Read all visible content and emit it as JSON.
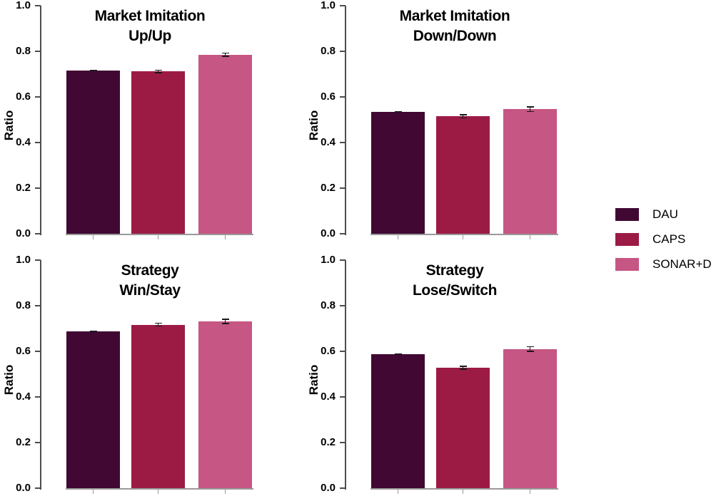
{
  "figure_title": "",
  "ylabel": "Ratio",
  "chart_data": {
    "type": "bar",
    "layout": "2x2 grid of subplots with shared legend at right",
    "ylabel": "Ratio",
    "ylim": [
      0,
      1
    ],
    "yticks": [
      0.0,
      0.2,
      0.4,
      0.6,
      0.8,
      1.0
    ],
    "ytick_labels": [
      "0.0",
      "0.2",
      "0.4",
      "0.6",
      "0.8",
      "1.0"
    ],
    "grid": false,
    "categories": [
      "DAU",
      "CAPS",
      "SONAR+D"
    ],
    "colors": [
      "#400833",
      "#9c1b45",
      "#c65683"
    ],
    "error_bars": true,
    "xtick_labels": [
      "",
      "",
      ""
    ],
    "legend": {
      "position": "right",
      "entries": [
        {
          "label": "DAU",
          "color": "#400833"
        },
        {
          "label": "CAPS",
          "color": "#9c1b45"
        },
        {
          "label": "SONAR+D",
          "color": "#c65683"
        }
      ]
    },
    "subplots": [
      {
        "title_line1": "Market Imitation",
        "title_line2": "Up/Up",
        "values": [
          0.715,
          0.712,
          0.785
        ],
        "errors": [
          0.004,
          0.008,
          0.01
        ]
      },
      {
        "title_line1": "Market Imitation",
        "title_line2": "Down/Down",
        "values": [
          0.535,
          0.515,
          0.546
        ],
        "errors": [
          0.004,
          0.009,
          0.012
        ]
      },
      {
        "title_line1": "Strategy",
        "title_line2": "Win/Stay",
        "values": [
          0.688,
          0.717,
          0.731
        ],
        "errors": [
          0.004,
          0.009,
          0.012
        ]
      },
      {
        "title_line1": "Strategy",
        "title_line2": "Lose/Switch",
        "values": [
          0.587,
          0.528,
          0.61
        ],
        "errors": [
          0.004,
          0.009,
          0.013
        ]
      }
    ]
  }
}
